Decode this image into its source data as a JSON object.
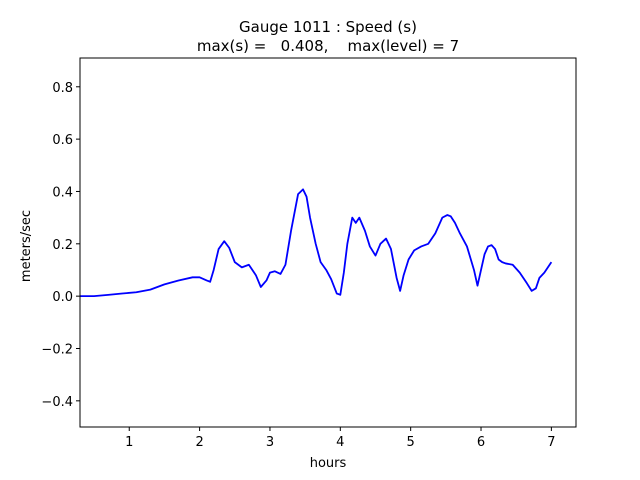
{
  "chart_data": {
    "type": "line",
    "title": "Gauge 1011 : Speed (s)",
    "subtitle": "max(s) =   0.408,    max(level) = 7",
    "xlabel": "hours",
    "ylabel": "meters/sec",
    "xlim": [
      0.3,
      7.35
    ],
    "ylim": [
      -0.5,
      0.91
    ],
    "xticks": [
      1,
      2,
      3,
      4,
      5,
      6,
      7
    ],
    "yticks": [
      -0.4,
      -0.2,
      0.0,
      0.2,
      0.4,
      0.6,
      0.8
    ],
    "xtick_labels": [
      "1",
      "2",
      "3",
      "4",
      "5",
      "6",
      "7"
    ],
    "ytick_labels": [
      "−0.4",
      "−0.2",
      "0.0",
      "0.2",
      "0.4",
      "0.6",
      "0.8"
    ],
    "grid": false,
    "series": [
      {
        "color": "#0000ff",
        "x": [
          0.3,
          0.5,
          0.7,
          0.9,
          1.1,
          1.3,
          1.5,
          1.7,
          1.9,
          2.0,
          2.1,
          2.15,
          2.2,
          2.27,
          2.35,
          2.42,
          2.5,
          2.6,
          2.7,
          2.8,
          2.87,
          2.95,
          3.0,
          3.07,
          3.15,
          3.22,
          3.3,
          3.4,
          3.47,
          3.52,
          3.57,
          3.65,
          3.72,
          3.8,
          3.87,
          3.95,
          4.0,
          4.05,
          4.1,
          4.17,
          4.22,
          4.27,
          4.35,
          4.42,
          4.5,
          4.57,
          4.65,
          4.72,
          4.8,
          4.85,
          4.9,
          4.97,
          5.05,
          5.15,
          5.25,
          5.35,
          5.45,
          5.52,
          5.57,
          5.63,
          5.7,
          5.8,
          5.9,
          5.95,
          6.0,
          6.05,
          6.1,
          6.15,
          6.2,
          6.25,
          6.3,
          6.35,
          6.45,
          6.55,
          6.65,
          6.72,
          6.78,
          6.83,
          6.9,
          6.95,
          7.0
        ],
        "y": [
          0.0,
          0.0,
          0.005,
          0.01,
          0.015,
          0.025,
          0.045,
          0.06,
          0.072,
          0.072,
          0.06,
          0.055,
          0.1,
          0.18,
          0.21,
          0.185,
          0.13,
          0.11,
          0.12,
          0.08,
          0.035,
          0.06,
          0.09,
          0.095,
          0.085,
          0.12,
          0.25,
          0.39,
          0.408,
          0.38,
          0.3,
          0.2,
          0.13,
          0.1,
          0.065,
          0.01,
          0.005,
          0.09,
          0.2,
          0.3,
          0.28,
          0.3,
          0.25,
          0.19,
          0.155,
          0.2,
          0.22,
          0.18,
          0.07,
          0.02,
          0.08,
          0.14,
          0.175,
          0.19,
          0.2,
          0.24,
          0.3,
          0.31,
          0.305,
          0.28,
          0.24,
          0.19,
          0.1,
          0.04,
          0.1,
          0.16,
          0.19,
          0.195,
          0.18,
          0.14,
          0.13,
          0.125,
          0.12,
          0.09,
          0.05,
          0.02,
          0.03,
          0.07,
          0.09,
          0.11,
          0.13
        ]
      }
    ]
  }
}
